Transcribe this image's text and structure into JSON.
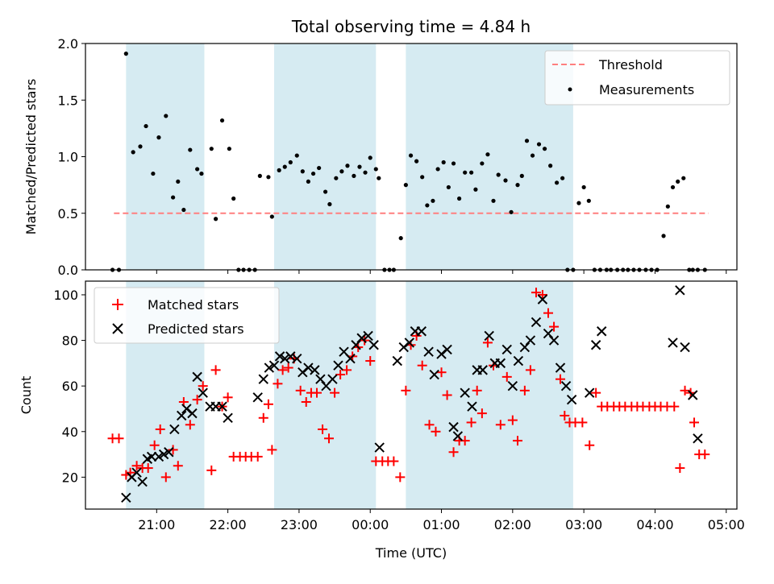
{
  "chart_data": [
    {
      "type": "scatter",
      "title": "Total observing time = 4.84 h",
      "ylabel": "Matched/Predicted stars",
      "xlabel": "",
      "ylim": [
        0,
        2.0
      ],
      "yticks": [
        "0.0",
        "0.5",
        "1.0",
        "1.5",
        "2.0"
      ],
      "xlim_hours": [
        20.0,
        29.15
      ],
      "grid": false,
      "legend": "top-right",
      "shaded_intervals_hours": [
        [
          20.57,
          21.67
        ],
        [
          22.65,
          24.08
        ],
        [
          24.5,
          26.85
        ]
      ],
      "threshold": {
        "name": "Threshold",
        "y": 0.5,
        "x_start": 20.4,
        "x_end": 28.75,
        "color": "#ff7f7f"
      },
      "series": [
        {
          "name": "Measurements",
          "color": "#000000",
          "x": [
            20.38,
            20.47,
            20.57,
            20.67,
            20.77,
            20.85,
            20.95,
            21.03,
            21.13,
            21.23,
            21.3,
            21.38,
            21.47,
            21.57,
            21.63,
            21.77,
            21.83,
            21.92,
            22.02,
            22.08,
            22.15,
            22.22,
            22.3,
            22.38,
            22.45,
            22.57,
            22.62,
            22.72,
            22.8,
            22.88,
            22.97,
            23.05,
            23.13,
            23.2,
            23.28,
            23.37,
            23.43,
            23.52,
            23.6,
            23.68,
            23.77,
            23.85,
            23.93,
            24.0,
            24.08,
            24.12,
            24.2,
            24.27,
            24.33,
            24.43,
            24.5,
            24.57,
            24.65,
            24.73,
            24.8,
            24.88,
            24.95,
            25.03,
            25.1,
            25.17,
            25.25,
            25.33,
            25.42,
            25.48,
            25.57,
            25.65,
            25.73,
            25.8,
            25.9,
            25.98,
            26.07,
            26.13,
            26.2,
            26.28,
            26.37,
            26.45,
            26.53,
            26.62,
            26.7,
            26.77,
            26.85,
            26.93,
            27.0,
            27.07,
            27.15,
            27.23,
            27.32,
            27.38,
            27.47,
            27.55,
            27.62,
            27.7,
            27.78,
            27.87,
            27.95,
            28.03,
            28.12,
            28.18,
            28.25,
            28.32,
            28.4,
            28.48,
            28.53,
            28.6,
            28.7
          ],
          "y": [
            0.0,
            0.0,
            1.91,
            1.04,
            1.09,
            1.27,
            0.85,
            1.17,
            1.36,
            0.64,
            0.78,
            0.53,
            1.06,
            0.89,
            0.85,
            1.07,
            0.45,
            1.32,
            1.07,
            0.63,
            0.0,
            0.0,
            0.0,
            0.0,
            0.83,
            0.82,
            0.47,
            0.88,
            0.91,
            0.95,
            1.01,
            0.87,
            0.78,
            0.85,
            0.9,
            0.69,
            0.58,
            0.81,
            0.87,
            0.92,
            0.83,
            0.91,
            0.86,
            0.99,
            0.89,
            0.81,
            0.0,
            0.0,
            0.0,
            0.28,
            0.75,
            1.01,
            0.96,
            0.82,
            0.57,
            0.61,
            0.89,
            0.95,
            0.73,
            0.94,
            0.63,
            0.86,
            0.86,
            0.71,
            0.94,
            1.02,
            0.61,
            0.84,
            0.79,
            0.51,
            0.75,
            0.83,
            1.14,
            1.01,
            1.11,
            1.07,
            0.92,
            0.77,
            0.81,
            0.0,
            0.0,
            0.59,
            0.73,
            0.61,
            0.0,
            0.0,
            0.0,
            0.0,
            0.0,
            0.0,
            0.0,
            0.0,
            0.0,
            0.0,
            0.0,
            0.0,
            0.3,
            0.56,
            0.73,
            0.78,
            0.81,
            0.0,
            0.0,
            0.0,
            0.0
          ]
        }
      ]
    },
    {
      "type": "scatter",
      "title": "",
      "ylabel": "Count",
      "xlabel": "Time (UTC)",
      "yticks": [
        "20",
        "40",
        "60",
        "80",
        "100"
      ],
      "ylim": [
        6,
        106
      ],
      "xlim_hours": [
        20.0,
        29.15
      ],
      "xticks": [
        {
          "h": 21,
          "label": "21:00"
        },
        {
          "h": 22,
          "label": "22:00"
        },
        {
          "h": 23,
          "label": "23:00"
        },
        {
          "h": 24,
          "label": "00:00"
        },
        {
          "h": 25,
          "label": "01:00"
        },
        {
          "h": 26,
          "label": "02:00"
        },
        {
          "h": 27,
          "label": "03:00"
        },
        {
          "h": 28,
          "label": "04:00"
        },
        {
          "h": 29,
          "label": "05:00"
        }
      ],
      "grid": false,
      "legend": "top-left",
      "shaded_intervals_hours": [
        [
          20.57,
          21.67
        ],
        [
          22.65,
          24.08
        ],
        [
          24.5,
          26.85
        ]
      ],
      "series": [
        {
          "name": "Matched stars",
          "marker": "plus",
          "color": "#ff0000",
          "x": [
            20.38,
            20.47,
            20.57,
            20.63,
            20.72,
            20.8,
            20.88,
            20.97,
            21.05,
            21.13,
            21.23,
            21.3,
            21.38,
            21.47,
            21.57,
            21.65,
            21.77,
            21.83,
            21.92,
            22.0,
            22.08,
            22.17,
            22.25,
            22.33,
            22.42,
            22.5,
            22.57,
            22.62,
            22.7,
            22.77,
            22.85,
            22.93,
            23.02,
            23.1,
            23.17,
            23.25,
            23.33,
            23.42,
            23.5,
            23.58,
            23.67,
            23.75,
            23.83,
            23.92,
            24.0,
            24.08,
            24.17,
            24.25,
            24.33,
            24.42,
            24.5,
            24.57,
            24.65,
            24.73,
            24.83,
            24.92,
            25.0,
            25.08,
            25.17,
            25.25,
            25.33,
            25.42,
            25.5,
            25.57,
            25.65,
            25.73,
            25.83,
            25.92,
            26.0,
            26.07,
            26.17,
            26.25,
            26.33,
            26.42,
            26.5,
            26.58,
            26.67,
            26.73,
            26.8,
            26.88,
            26.98,
            27.08,
            27.17,
            27.25,
            27.33,
            27.42,
            27.5,
            27.58,
            27.67,
            27.75,
            27.83,
            27.92,
            28.0,
            28.08,
            28.17,
            28.27,
            28.35,
            28.42,
            28.5,
            28.55,
            28.62,
            28.7
          ],
          "y": [
            37,
            37,
            21,
            22,
            25,
            24,
            24,
            34,
            41,
            20,
            32,
            25,
            53,
            43,
            54,
            60,
            23,
            67,
            51,
            55,
            29,
            29,
            29,
            29,
            29,
            46,
            52,
            32,
            61,
            67,
            68,
            72,
            58,
            53,
            57,
            57,
            41,
            37,
            57,
            65,
            67,
            73,
            77,
            80,
            71,
            27,
            27,
            27,
            27,
            20,
            58,
            78,
            82,
            69,
            43,
            40,
            66,
            56,
            31,
            36,
            36,
            44,
            58,
            48,
            79,
            69,
            43,
            64,
            45,
            36,
            58,
            67,
            101,
            100,
            92,
            86,
            63,
            47,
            44,
            44,
            44,
            34,
            57,
            51,
            51,
            51,
            51,
            51,
            51,
            51,
            51,
            51,
            51,
            51,
            51,
            51,
            24,
            58,
            57,
            44,
            30,
            30
          ]
        },
        {
          "name": "Predicted stars",
          "marker": "x",
          "color": "#000000",
          "x": [
            20.57,
            20.65,
            20.72,
            20.8,
            20.87,
            20.93,
            21.03,
            21.1,
            21.17,
            21.25,
            21.35,
            21.42,
            21.5,
            21.57,
            21.65,
            21.75,
            21.83,
            21.92,
            22.0,
            22.42,
            22.5,
            22.58,
            22.65,
            22.73,
            22.8,
            22.88,
            22.97,
            23.05,
            23.13,
            23.22,
            23.3,
            23.38,
            23.47,
            23.55,
            23.63,
            23.72,
            23.8,
            23.88,
            23.97,
            24.05,
            24.13,
            24.38,
            24.47,
            24.55,
            24.63,
            24.72,
            24.82,
            24.9,
            25.0,
            25.08,
            25.17,
            25.23,
            25.33,
            25.43,
            25.5,
            25.58,
            25.67,
            25.75,
            25.83,
            25.92,
            26.0,
            26.08,
            26.17,
            26.25,
            26.33,
            26.42,
            26.5,
            26.58,
            26.67,
            26.75,
            26.83,
            27.08,
            27.17,
            27.25,
            28.25,
            28.35,
            28.42,
            28.53,
            28.6
          ],
          "y": [
            11,
            20,
            22,
            18,
            28,
            29,
            29,
            30,
            31,
            41,
            47,
            50,
            48,
            64,
            57,
            51,
            51,
            51,
            46,
            55,
            63,
            68,
            69,
            73,
            72,
            73,
            72,
            66,
            68,
            67,
            63,
            60,
            63,
            69,
            75,
            72,
            78,
            81,
            82,
            78,
            33,
            71,
            77,
            79,
            84,
            84,
            75,
            65,
            74,
            76,
            42,
            38,
            57,
            51,
            67,
            67,
            82,
            70,
            70,
            76,
            60,
            71,
            77,
            80,
            88,
            98,
            83,
            80,
            68,
            60,
            54,
            57,
            78,
            84,
            79,
            102,
            77,
            56,
            37
          ]
        }
      ]
    }
  ]
}
